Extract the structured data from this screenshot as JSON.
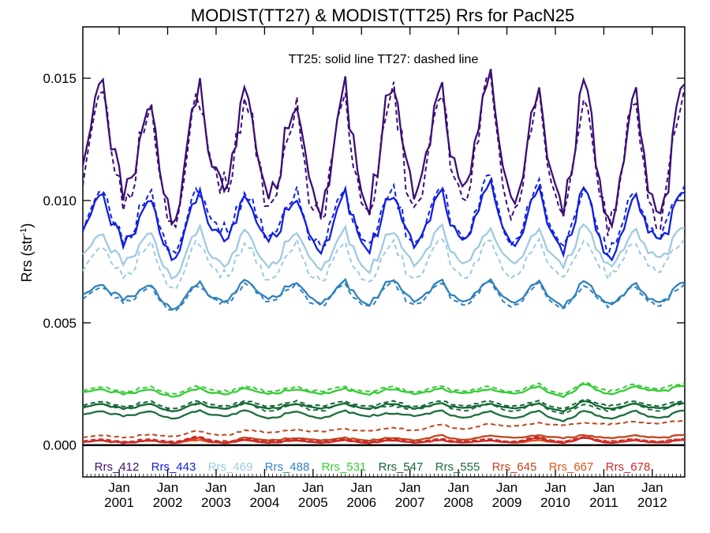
{
  "chart_data": {
    "type": "line",
    "title": "MODIST(TT27) & MODIST(TT25)  Rrs for PacN25",
    "annotation": "TT25: solid line   TT27: dashed line",
    "ylabel_main": "Rrs (str",
    "ylabel_exp": "-1",
    "ylabel_close": ")",
    "xlabel": "",
    "x_range": [
      2000.25,
      2012.67
    ],
    "ylim": [
      -0.0013,
      0.0171
    ],
    "yticks": [
      {
        "value": 0.0,
        "label": "0.000"
      },
      {
        "value": 0.005,
        "label": "0.005"
      },
      {
        "value": 0.01,
        "label": "0.010"
      },
      {
        "value": 0.015,
        "label": "0.015"
      }
    ],
    "xticks": [
      {
        "value": 2001.0,
        "label": "Jan",
        "year": "2001"
      },
      {
        "value": 2002.0,
        "label": "Jan",
        "year": "2002"
      },
      {
        "value": 2003.0,
        "label": "Jan",
        "year": "2003"
      },
      {
        "value": 2004.0,
        "label": "Jan",
        "year": "2004"
      },
      {
        "value": 2005.0,
        "label": "Jan",
        "year": "2005"
      },
      {
        "value": 2006.0,
        "label": "Jan",
        "year": "2006"
      },
      {
        "value": 2007.0,
        "label": "Jan",
        "year": "2007"
      },
      {
        "value": 2008.0,
        "label": "Jan",
        "year": "2008"
      },
      {
        "value": 2009.0,
        "label": "Jan",
        "year": "2009"
      },
      {
        "value": 2010.0,
        "label": "Jan",
        "year": "2010"
      },
      {
        "value": 2011.0,
        "label": "Jan",
        "year": "2011"
      },
      {
        "value": 2012.0,
        "label": "Jan",
        "year": "2012"
      }
    ],
    "series": [
      {
        "name": "Rrs_412",
        "color": "#3b0f75",
        "peaks": [
          0.0142,
          0.0152,
          0.0142,
          0.0145,
          0.0143,
          0.0142,
          0.0147,
          0.0149,
          0.0145,
          0.0155,
          0.0145,
          0.0149,
          0.0145
        ],
        "troughs": [
          0.0104,
          0.0093,
          0.0107,
          0.0102,
          0.0095,
          0.0099,
          0.0103,
          0.0102,
          0.0098,
          0.0098,
          0.0092,
          0.0092
        ],
        "dash_offset": -0.0003
      },
      {
        "name": "Rrs_443",
        "color": "#1020e0",
        "peaks": [
          0.0104,
          0.0104,
          0.0102,
          0.0102,
          0.01,
          0.0102,
          0.0103,
          0.0103,
          0.0103,
          0.0109,
          0.0105,
          0.0105,
          0.0102
        ],
        "troughs": [
          0.0083,
          0.0077,
          0.0085,
          0.0084,
          0.0079,
          0.0081,
          0.0082,
          0.0082,
          0.0081,
          0.008,
          0.0077,
          0.0083
        ],
        "dash_offset": 0.0002
      },
      {
        "name": "Rrs_469",
        "color": "#9ecae1",
        "peaks": [
          0.0085,
          0.0087,
          0.0088,
          0.0088,
          0.0087,
          0.0088,
          0.0088,
          0.0088,
          0.0089,
          0.0089,
          0.0088,
          0.009,
          0.0088
        ],
        "troughs": [
          0.0075,
          0.0069,
          0.0074,
          0.0073,
          0.0072,
          0.0072,
          0.0074,
          0.0073,
          0.0074,
          0.0074,
          0.0074,
          0.0076
        ],
        "dash_offset": -0.0005
      },
      {
        "name": "Rrs_488",
        "color": "#3182bd",
        "peaks": [
          0.0066,
          0.0066,
          0.0066,
          0.0066,
          0.0067,
          0.0067,
          0.0067,
          0.0068,
          0.0067,
          0.0068,
          0.0067,
          0.0067,
          0.0066
        ],
        "troughs": [
          0.006,
          0.0056,
          0.0059,
          0.006,
          0.0058,
          0.0058,
          0.0059,
          0.0058,
          0.0058,
          0.0057,
          0.0058,
          0.0058
        ],
        "dash_offset": -0.0001
      },
      {
        "name": "Rrs_531",
        "color": "#33cc33",
        "peaks": [
          0.0022,
          0.0023,
          0.0023,
          0.0023,
          0.0023,
          0.0023,
          0.0023,
          0.0023,
          0.0023,
          0.0023,
          0.0024,
          0.0025,
          0.0024
        ],
        "troughs": [
          0.0021,
          0.002,
          0.0021,
          0.0021,
          0.0021,
          0.0021,
          0.0021,
          0.0021,
          0.0021,
          0.002,
          0.0021,
          0.0022
        ],
        "dash_offset": 0.0001
      },
      {
        "name": "Rrs_547",
        "color": "#116633",
        "peaks": [
          0.0017,
          0.0017,
          0.0017,
          0.0017,
          0.0017,
          0.0017,
          0.0017,
          0.0017,
          0.0017,
          0.0017,
          0.0017,
          0.0018,
          0.0017
        ],
        "troughs": [
          0.0015,
          0.0014,
          0.0015,
          0.0015,
          0.0015,
          0.0015,
          0.0015,
          0.0015,
          0.0015,
          0.0014,
          0.0015,
          0.0015
        ],
        "dash_offset": 0.0001
      },
      {
        "name": "Rrs_555",
        "color": "#1e6e3c",
        "peaks": [
          0.0014,
          0.0014,
          0.0014,
          0.0014,
          0.0014,
          0.0014,
          0.0014,
          0.0013,
          0.0014,
          0.0014,
          0.0014,
          0.0014,
          0.0014
        ],
        "troughs": [
          0.0012,
          0.0011,
          0.0012,
          0.0011,
          0.0011,
          0.0012,
          0.0012,
          0.0011,
          0.0011,
          0.001,
          0.0011,
          0.0011
        ],
        "dash_offset": 0.0003
      },
      {
        "name": "Rrs_645",
        "color": "#c0451c",
        "peaks": [
          0.0002,
          0.0002,
          0.0002,
          0.0003,
          0.0003,
          0.0003,
          0.0003,
          0.0003,
          0.0004,
          0.0004,
          0.0004,
          0.0004,
          0.0004
        ],
        "troughs": [
          0.0001,
          0.0001,
          0.0001,
          0.0002,
          0.0002,
          0.0002,
          0.0002,
          0.0002,
          0.0003,
          0.0003,
          0.0003,
          0.0003
        ],
        "dash_offset": 0.0
      },
      {
        "name": "Rrs_667",
        "color": "#e0541a",
        "peaks": [
          0.0002,
          0.0002,
          0.0002,
          0.0002,
          0.0002,
          0.0002,
          0.0002,
          0.0002,
          0.0002,
          0.0002,
          0.0002,
          0.0003,
          0.0002
        ],
        "troughs": [
          0.0001,
          0.0001,
          0.0001,
          0.0001,
          0.0001,
          0.0001,
          0.0001,
          0.0001,
          0.0001,
          0.0001,
          0.0001,
          0.0001
        ],
        "dash_offset": 5e-05
      },
      {
        "name": "Rrs_678",
        "color": "#cc2a2a",
        "peaks": [
          0.0002,
          0.0002,
          0.0002,
          0.0003,
          0.0002,
          0.0002,
          0.0002,
          0.0002,
          0.0002,
          0.0002,
          0.0003,
          0.0003,
          0.0002
        ],
        "troughs": [
          0.0001,
          0.0001,
          0.0001,
          0.0001,
          0.0001,
          0.0001,
          0.0001,
          0.0001,
          0.0001,
          0.0001,
          0.0001,
          0.0001
        ],
        "dash_offset": 5e-05
      }
    ],
    "dashed_series_note_645": [
      0.0005,
      0.0006,
      0.0007,
      0.0008
    ],
    "grid": false,
    "legend_placement": "bottom inside plot"
  }
}
